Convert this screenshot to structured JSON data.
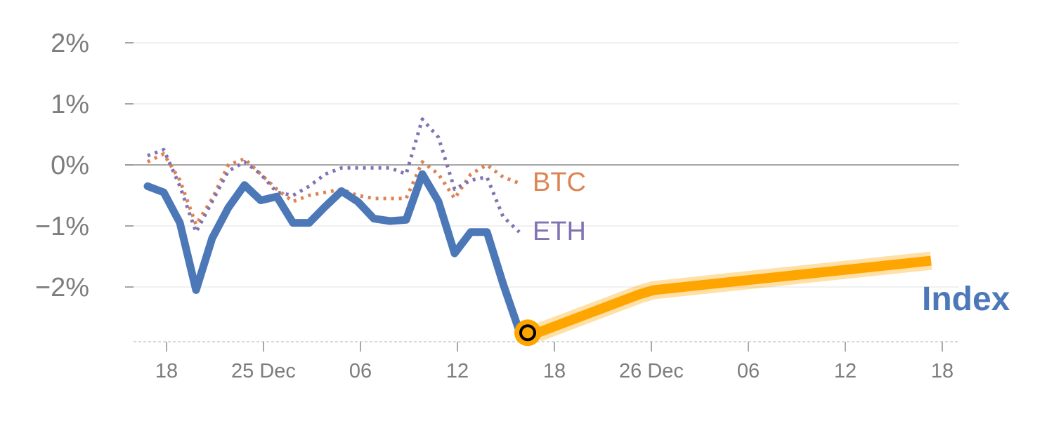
{
  "chart_data": {
    "type": "line",
    "y_axis": {
      "ticks": [
        2,
        1,
        0,
        -1,
        -2
      ],
      "tick_labels": [
        "2%",
        "1%",
        "0%",
        "−1%",
        "−2%"
      ],
      "ylim": [
        -2.9,
        2.0
      ],
      "grid": true
    },
    "x_axis": {
      "tick_labels": [
        "18",
        "25 Dec",
        "06",
        "12",
        "18",
        "26 Dec",
        "06",
        "12",
        "18"
      ]
    },
    "series": [
      {
        "name": "BTC",
        "color": "#dd8452",
        "style": "dotted",
        "x": [
          0,
          1,
          2,
          3,
          4,
          5,
          6,
          7,
          8,
          9,
          10,
          11,
          12,
          13,
          14,
          15,
          16,
          17,
          18,
          19,
          20,
          21,
          22,
          23
        ],
        "y": [
          0.05,
          0.18,
          -0.25,
          -0.98,
          -0.55,
          0.0,
          0.1,
          -0.15,
          -0.4,
          -0.6,
          -0.5,
          -0.45,
          -0.4,
          -0.5,
          -0.55,
          -0.55,
          -0.55,
          0.05,
          -0.15,
          -0.55,
          -0.15,
          0.0,
          -0.2,
          -0.3
        ]
      },
      {
        "name": "ETH",
        "color": "#8172b3",
        "style": "dotted",
        "x": [
          0,
          1,
          2,
          3,
          4,
          5,
          6,
          7,
          8,
          9,
          10,
          11,
          12,
          13,
          14,
          15,
          16,
          17,
          18,
          19,
          20,
          21,
          22,
          23
        ],
        "y": [
          0.15,
          0.25,
          -0.35,
          -1.1,
          -0.6,
          -0.1,
          0.05,
          -0.15,
          -0.45,
          -0.5,
          -0.35,
          -0.15,
          -0.05,
          -0.05,
          -0.05,
          -0.05,
          -0.15,
          0.75,
          0.45,
          -0.4,
          -0.25,
          -0.2,
          -0.85,
          -1.1
        ]
      },
      {
        "name": "Index",
        "color": "#4c78b8",
        "style": "solid",
        "x": [
          0,
          1,
          2,
          3,
          4,
          5,
          6,
          7,
          8,
          9,
          10,
          11,
          12,
          13,
          14,
          15,
          16,
          17,
          18,
          19,
          20,
          21,
          22,
          23
        ],
        "y": [
          -0.35,
          -0.45,
          -0.95,
          -2.05,
          -1.2,
          -0.7,
          -0.33,
          -0.58,
          -0.52,
          -0.95,
          -0.95,
          -0.68,
          -0.43,
          -0.6,
          -0.88,
          -0.92,
          -0.9,
          -0.15,
          -0.6,
          -1.45,
          -1.1,
          -1.1,
          -1.95,
          -2.72
        ]
      }
    ],
    "forecast": {
      "color": "#ffa500",
      "x": [
        23,
        30,
        31,
        50
      ],
      "y": [
        -2.75,
        -2.12,
        -2.05,
        -1.57
      ]
    },
    "marker": {
      "x": 23,
      "y": -2.75,
      "fill": "#ffa500",
      "stroke": "#000000"
    }
  }
}
